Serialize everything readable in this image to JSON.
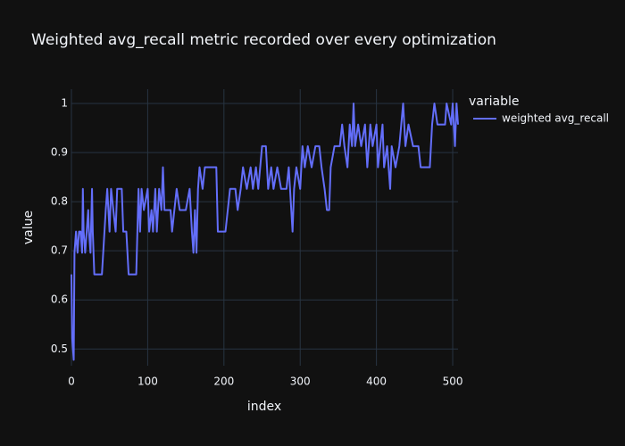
{
  "chart_data": {
    "type": "line",
    "title": "Weighted avg_recall metric recorded over every optimization",
    "x_label": "index",
    "y_label": "value",
    "legend_title": "variable",
    "xlim": [
      0,
      507
    ],
    "ylim": [
      0.466,
      1.029
    ],
    "xticks": [
      0,
      100,
      200,
      300,
      400,
      500
    ],
    "yticks": [
      0.5,
      0.6,
      0.7,
      0.8,
      0.9,
      1
    ],
    "grid": true,
    "legend_position": "right",
    "x": [
      0,
      1,
      3,
      4,
      6,
      8,
      10,
      12,
      14,
      15,
      16,
      18,
      20,
      22,
      23,
      25,
      27,
      28,
      30,
      40,
      45,
      47,
      50,
      52,
      58,
      60,
      66,
      68,
      72,
      75,
      85,
      88,
      90,
      92,
      95,
      100,
      102,
      105,
      107,
      110,
      112,
      115,
      118,
      120,
      122,
      130,
      132,
      135,
      138,
      142,
      150,
      155,
      158,
      160,
      162,
      164,
      166,
      168,
      172,
      175,
      190,
      192,
      202,
      208,
      215,
      218,
      222,
      225,
      230,
      235,
      238,
      242,
      245,
      250,
      255,
      258,
      262,
      265,
      270,
      275,
      282,
      285,
      290,
      292,
      295,
      300,
      303,
      306,
      310,
      315,
      320,
      325,
      328,
      332,
      335,
      338,
      340,
      345,
      352,
      355,
      358,
      362,
      365,
      368,
      370,
      372,
      376,
      380,
      385,
      388,
      392,
      395,
      400,
      402,
      405,
      408,
      410,
      414,
      418,
      420,
      425,
      430,
      435,
      438,
      442,
      448,
      455,
      458,
      470,
      473,
      476,
      480,
      490,
      492,
      498,
      500,
      503,
      505,
      507
    ],
    "series": [
      {
        "name": "weighted avg_recall",
        "color": "#636efa",
        "values": [
          0.652,
          0.522,
          0.478,
          0.696,
          0.739,
          0.696,
          0.739,
          0.739,
          0.696,
          0.826,
          0.739,
          0.696,
          0.739,
          0.783,
          0.739,
          0.696,
          0.826,
          0.739,
          0.652,
          0.652,
          0.783,
          0.826,
          0.739,
          0.826,
          0.739,
          0.826,
          0.826,
          0.739,
          0.739,
          0.652,
          0.652,
          0.826,
          0.739,
          0.826,
          0.783,
          0.826,
          0.739,
          0.783,
          0.739,
          0.826,
          0.739,
          0.826,
          0.783,
          0.87,
          0.783,
          0.783,
          0.739,
          0.783,
          0.826,
          0.783,
          0.783,
          0.826,
          0.739,
          0.696,
          0.783,
          0.696,
          0.826,
          0.87,
          0.826,
          0.87,
          0.87,
          0.739,
          0.739,
          0.826,
          0.826,
          0.783,
          0.826,
          0.87,
          0.826,
          0.87,
          0.826,
          0.87,
          0.826,
          0.913,
          0.913,
          0.826,
          0.87,
          0.826,
          0.87,
          0.826,
          0.826,
          0.87,
          0.739,
          0.826,
          0.87,
          0.826,
          0.913,
          0.87,
          0.913,
          0.87,
          0.913,
          0.913,
          0.87,
          0.826,
          0.783,
          0.783,
          0.87,
          0.913,
          0.913,
          0.957,
          0.913,
          0.87,
          0.957,
          0.913,
          1.0,
          0.913,
          0.957,
          0.913,
          0.957,
          0.87,
          0.957,
          0.913,
          0.957,
          0.87,
          0.913,
          0.957,
          0.87,
          0.913,
          0.826,
          0.913,
          0.87,
          0.913,
          1.0,
          0.913,
          0.957,
          0.913,
          0.913,
          0.87,
          0.87,
          0.957,
          1.0,
          0.957,
          0.957,
          1.0,
          0.957,
          1.0,
          0.913,
          1.0,
          0.957
        ]
      }
    ]
  }
}
